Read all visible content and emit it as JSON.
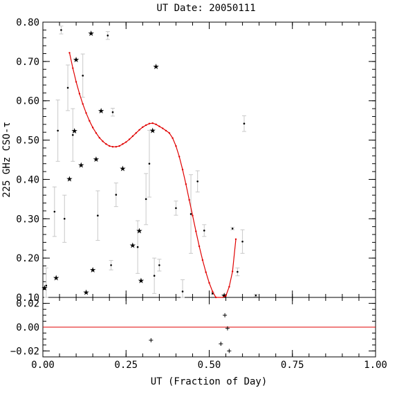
{
  "chart_data": [
    {
      "type": "scatter",
      "title": "UT Date: 20050111",
      "xlabel": "UT (Fraction of Day)",
      "ylabel": "225 GHz CSO-τ",
      "xlim": [
        0,
        1
      ],
      "ylim": [
        0.1,
        0.8
      ],
      "xticks": [
        0.0,
        0.25,
        0.5,
        0.75,
        1.0
      ],
      "xtick_labels": [
        "0.00",
        "0.25",
        "0.50",
        "0.75",
        "1.00"
      ],
      "yticks": [
        0.1,
        0.2,
        0.3,
        0.4,
        0.5,
        0.6,
        0.7,
        0.8
      ],
      "ytick_labels": [
        "0.10",
        "0.20",
        "0.30",
        "0.40",
        "0.50",
        "0.60",
        "0.70",
        "0.80"
      ],
      "series": [
        {
          "marker": "dot",
          "x": [
            0.01,
            0.035,
            0.045,
            0.055,
            0.065,
            0.075,
            0.09,
            0.12,
            0.165,
            0.195,
            0.205,
            0.21,
            0.22,
            0.285,
            0.31,
            0.32,
            0.335,
            0.35,
            0.4,
            0.42,
            0.445,
            0.465,
            0.485,
            0.51,
            0.57,
            0.585,
            0.6,
            0.605,
            0.64
          ],
          "y": [
            0.13,
            0.318,
            0.524,
            0.78,
            0.3,
            0.633,
            0.513,
            0.664,
            0.308,
            0.766,
            0.182,
            0.571,
            0.361,
            0.228,
            0.35,
            0.44,
            0.155,
            0.182,
            0.327,
            0.115,
            0.312,
            0.395,
            0.27,
            0.11,
            0.275,
            0.165,
            0.242,
            0.542,
            0.105
          ],
          "err": [
            0.045,
            0.063,
            0.078,
            0.01,
            0.06,
            0.058,
            0.067,
            0.055,
            0.063,
            0.01,
            0.012,
            0.01,
            0.03,
            0.067,
            0.065,
            0.085,
            0.045,
            0.015,
            0.018,
            0.03,
            0.1,
            0.027,
            0.015,
            0.003,
            0.003,
            0.01,
            0.03,
            0.02,
            0.003
          ]
        },
        {
          "marker": "star",
          "x": [
            0.005,
            0.04,
            0.08,
            0.095,
            0.1,
            0.115,
            0.13,
            0.145,
            0.15,
            0.16,
            0.175,
            0.24,
            0.27,
            0.29,
            0.295,
            0.33,
            0.34,
            0.545
          ],
          "y": [
            0.125,
            0.15,
            0.402,
            0.524,
            0.705,
            0.437,
            0.113,
            0.772,
            0.17,
            0.452,
            0.575,
            0.428,
            0.233,
            0.27,
            0.143,
            0.525,
            0.687,
            0.105
          ]
        },
        {
          "type": "line",
          "x": [
            0.08,
            0.09,
            0.1,
            0.11,
            0.12,
            0.13,
            0.14,
            0.15,
            0.16,
            0.17,
            0.18,
            0.19,
            0.2,
            0.21,
            0.22,
            0.23,
            0.24,
            0.25,
            0.26,
            0.27,
            0.28,
            0.29,
            0.3,
            0.31,
            0.32,
            0.33,
            0.34,
            0.35,
            0.36,
            0.37,
            0.38,
            0.39,
            0.4,
            0.41,
            0.42,
            0.43,
            0.44,
            0.45,
            0.46,
            0.47,
            0.48,
            0.49,
            0.5,
            0.51,
            0.52,
            0.53,
            0.54,
            0.55,
            0.56,
            0.57,
            0.58
          ],
          "y": [
            0.722,
            0.683,
            0.648,
            0.618,
            0.592,
            0.569,
            0.549,
            0.532,
            0.518,
            0.506,
            0.497,
            0.49,
            0.485,
            0.483,
            0.483,
            0.485,
            0.49,
            0.495,
            0.502,
            0.51,
            0.518,
            0.526,
            0.533,
            0.538,
            0.542,
            0.543,
            0.54,
            0.535,
            0.53,
            0.524,
            0.518,
            0.505,
            0.485,
            0.458,
            0.425,
            0.388,
            0.348,
            0.308,
            0.268,
            0.23,
            0.195,
            0.164,
            0.137,
            0.115,
            0.1,
            0.092,
            0.093,
            0.104,
            0.127,
            0.166,
            0.248
          ]
        }
      ]
    },
    {
      "type": "scatter",
      "xlabel": "UT (Fraction of Day)",
      "xlim": [
        0,
        1
      ],
      "ylim": [
        -0.025,
        0.025
      ],
      "xticks": [
        0.0,
        0.25,
        0.5,
        0.75,
        1.0
      ],
      "yticks": [
        -0.02,
        0.0,
        0.02
      ],
      "ytick_labels": [
        "−0.02",
        "0.00",
        "0.02"
      ],
      "zero_line": 0.0,
      "series": [
        {
          "marker": "plus",
          "x": [
            0.325,
            0.535,
            0.547,
            0.555,
            0.56
          ],
          "y": [
            -0.011,
            -0.014,
            0.01,
            -0.001,
            -0.02
          ]
        }
      ]
    }
  ],
  "colors": {
    "fit": "#e00000",
    "errorbar": "#c8c8c8",
    "points": "#000000",
    "zero_line": "#e00000"
  }
}
